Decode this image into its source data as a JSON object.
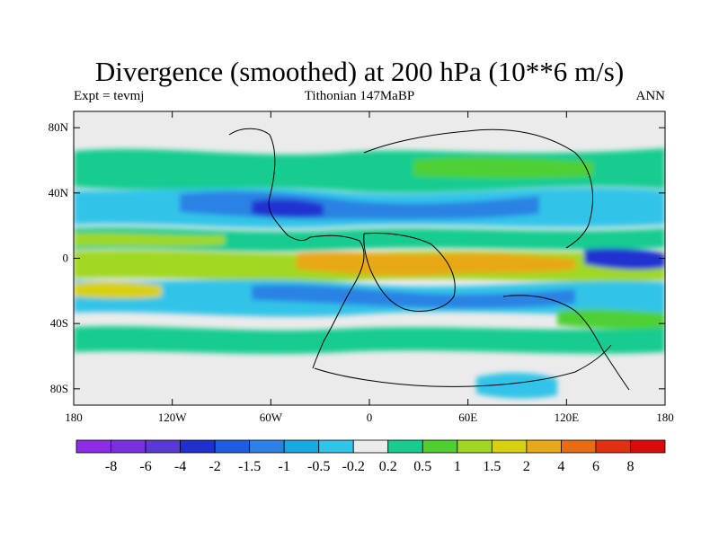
{
  "title": "Divergence (smoothed) at 200 hPa (10**6 m/s)",
  "subtitle_left": "Expt = tevmj",
  "subtitle_center": "Tithonian 147MaBP",
  "subtitle_right": "ANN",
  "chart_data": {
    "type": "heatmap",
    "variable": "Divergence (smoothed) at 200 hPa",
    "units": "10**6 m/s",
    "x_ticks": [
      "180",
      "120W",
      "60W",
      "0",
      "60E",
      "120E",
      "180"
    ],
    "x_tick_values": [
      -180,
      -120,
      -60,
      0,
      60,
      120,
      180
    ],
    "y_ticks": [
      "80N",
      "40N",
      "0",
      "40S",
      "80S"
    ],
    "y_tick_values": [
      80,
      40,
      0,
      -40,
      -80
    ],
    "xlim": [
      -180,
      180
    ],
    "ylim": [
      -90,
      90
    ],
    "colorbar_labels": [
      "-8",
      "-6",
      "-4",
      "-2",
      "-1.5",
      "-1",
      "-0.5",
      "-0.2",
      "0.2",
      "0.5",
      "1",
      "1.5",
      "2",
      "4",
      "6",
      "8"
    ],
    "colorbar_colors": [
      "#8c2ce6",
      "#7a30e0",
      "#5a3ad6",
      "#2030d0",
      "#1e5ce0",
      "#2c82e4",
      "#19a8e0",
      "#30c4e8",
      "#ebebeb",
      "#18cc90",
      "#50d030",
      "#a0d820",
      "#d8d010",
      "#e8a818",
      "#e86c14",
      "#e03010",
      "#d80c0c"
    ],
    "field_bands": [
      {
        "lat": [
          60,
          90
        ],
        "class": "near-zero"
      },
      {
        "lat": [
          40,
          60
        ],
        "class": "positive",
        "value_range": [
          0.2,
          1.0
        ]
      },
      {
        "lat": [
          20,
          40
        ],
        "class": "negative",
        "value_range": [
          -2,
          -0.2
        ]
      },
      {
        "lat": [
          5,
          20
        ],
        "class": "positive",
        "value_range": [
          0.2,
          1.5
        ]
      },
      {
        "lat": [
          -15,
          5
        ],
        "class": "strong-positive",
        "value_range": [
          1,
          4
        ]
      },
      {
        "lat": [
          -35,
          -15
        ],
        "class": "negative",
        "value_range": [
          -2,
          -0.2
        ]
      },
      {
        "lat": [
          -55,
          -35
        ],
        "class": "positive",
        "value_range": [
          0.2,
          1.0
        ]
      },
      {
        "lat": [
          -90,
          -55
        ],
        "class": "near-zero"
      }
    ]
  }
}
